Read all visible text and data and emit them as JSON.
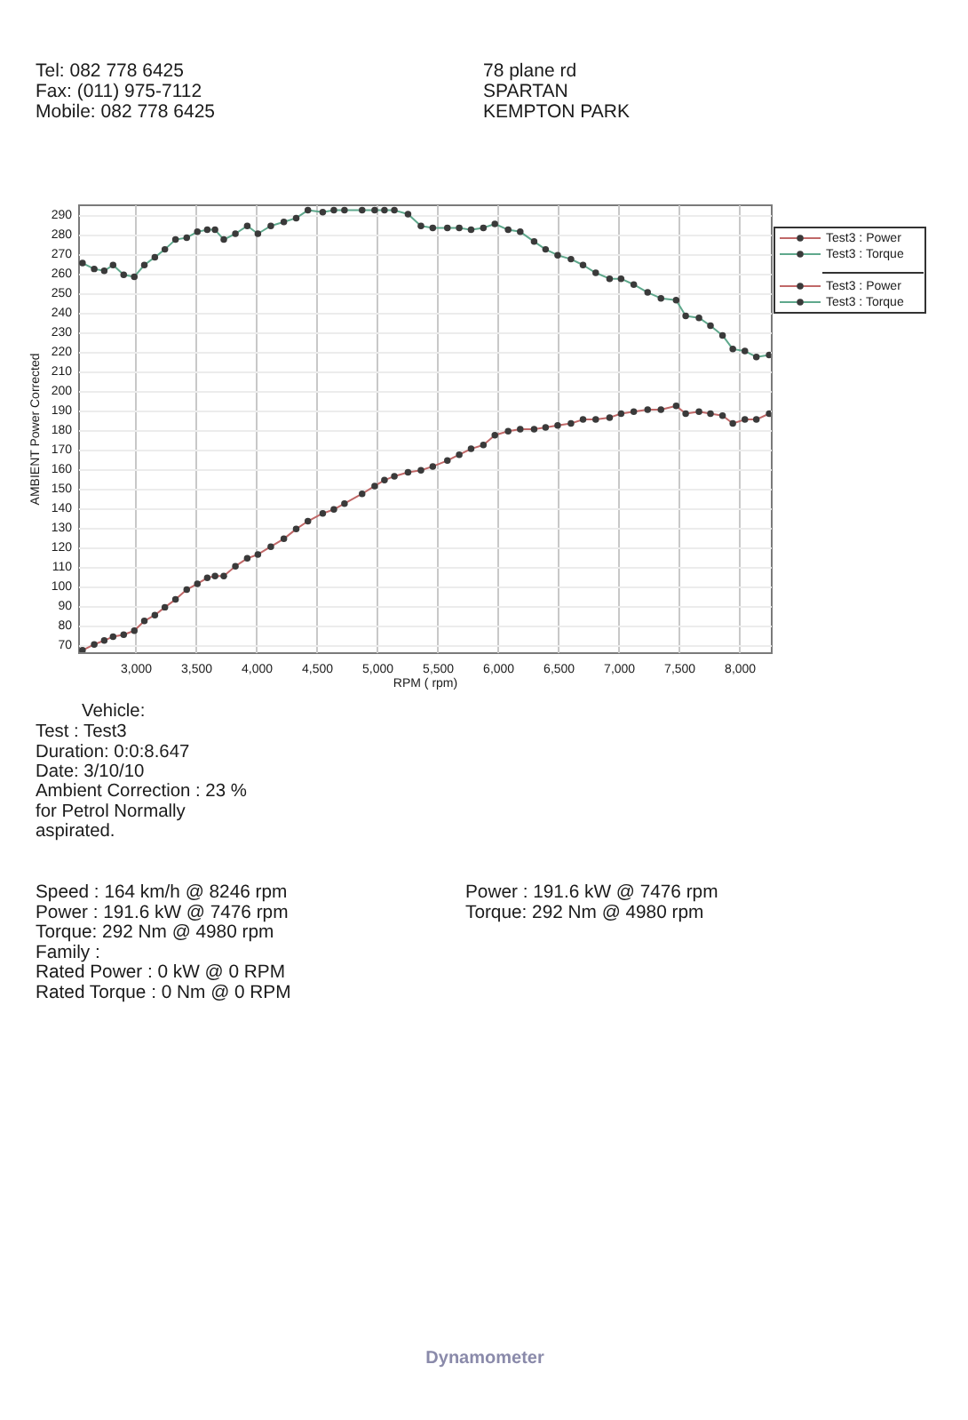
{
  "chart_data": {
    "type": "line",
    "xlabel": "RPM ( rpm)",
    "ylabel": "AMBIENT Power Corrected",
    "x": [
      2561,
      2658,
      2741,
      2814,
      2902,
      2990,
      3073,
      3160,
      3243,
      3331,
      3424,
      3512,
      3594,
      3658,
      3731,
      3827,
      3925,
      4013,
      4120,
      4228,
      4330,
      4427,
      4550,
      4642,
      4730,
      4876,
      4980,
      5061,
      5143,
      5256,
      5363,
      5461,
      5582,
      5680,
      5778,
      5880,
      5975,
      6085,
      6185,
      6300,
      6395,
      6495,
      6605,
      6705,
      6810,
      6925,
      7020,
      7125,
      7240,
      7350,
      7476,
      7555,
      7665,
      7760,
      7860,
      7945,
      8045,
      8140,
      8246
    ],
    "series": [
      {
        "name": "Test3 : Power",
        "color": "#c06868",
        "values": [
          67,
          70,
          72,
          74,
          75,
          77,
          82,
          85,
          89,
          93,
          98,
          101,
          104,
          105,
          105,
          110,
          114,
          116,
          120,
          124,
          129,
          133,
          137,
          139,
          142,
          147,
          151,
          154,
          156,
          158,
          159,
          161,
          164,
          167,
          170,
          172,
          177,
          179,
          180,
          180,
          181,
          182,
          183,
          185,
          185,
          186,
          188,
          189,
          190,
          190,
          192,
          188,
          189,
          188,
          187,
          183,
          185,
          185,
          188
        ]
      },
      {
        "name": "Test3 : Torque",
        "color": "#5fa88c",
        "values": [
          265,
          262,
          261,
          264,
          259,
          258,
          264,
          268,
          272,
          277,
          278,
          281,
          282,
          282,
          277,
          280,
          284,
          280,
          284,
          286,
          288,
          292,
          291,
          292,
          292,
          292,
          292,
          292,
          292,
          290,
          284,
          283,
          283,
          283,
          282,
          283,
          285,
          282,
          281,
          276,
          272,
          269,
          267,
          264,
          260,
          257,
          257,
          254,
          250,
          247,
          246,
          238,
          237,
          233,
          228,
          221,
          220,
          217,
          218
        ]
      }
    ],
    "xlim": [
      2525,
      8260
    ],
    "ylim": [
      66,
      295
    ],
    "xticks": [
      {
        "value": 3000,
        "label": "3,000"
      },
      {
        "value": 3500,
        "label": "3,500"
      },
      {
        "value": 4000,
        "label": "4,000"
      },
      {
        "value": 4500,
        "label": "4,500"
      },
      {
        "value": 5000,
        "label": "5,000"
      },
      {
        "value": 5500,
        "label": "5,500"
      },
      {
        "value": 6000,
        "label": "6,000"
      },
      {
        "value": 6500,
        "label": "6,500"
      },
      {
        "value": 7000,
        "label": "7,000"
      },
      {
        "value": 7500,
        "label": "7,500"
      },
      {
        "value": 8000,
        "label": "8,000"
      }
    ],
    "yticks": [
      70,
      80,
      90,
      100,
      110,
      120,
      130,
      140,
      150,
      160,
      170,
      180,
      190,
      200,
      210,
      220,
      230,
      240,
      250,
      260,
      270,
      280,
      290
    ],
    "grid": true,
    "legend": "right",
    "marker": "circle",
    "line_style": "solid",
    "annotations": [
      "Tel: 082 778 6425",
      "Fax: (011) 975-7112",
      "Mobile: 082 778 6425",
      "78 plane rd",
      "SPARTAN",
      "KEMPTON PARK",
      "Vehicle:",
      "Test : Test3",
      "Duration: 0:0:8.647",
      "Date: 3/10/10",
      "Ambient Correction : 23 %",
      "for Petrol Normally",
      "aspirated.",
      "Speed : 164 km/h @ 8246 rpm",
      "Power : 191.6 kW @ 7476 rpm",
      "Torque: 292 Nm @ 4980 rpm",
      "Family :",
      "Rated Power : 0 kW @ 0 RPM",
      "Rated Torque : 0 Nm @ 0 RPM",
      "Power : 191.6 kW @ 7476 rpm",
      "Torque: 292 Nm @ 4980 rpm",
      "Dynamometer"
    ]
  }
}
